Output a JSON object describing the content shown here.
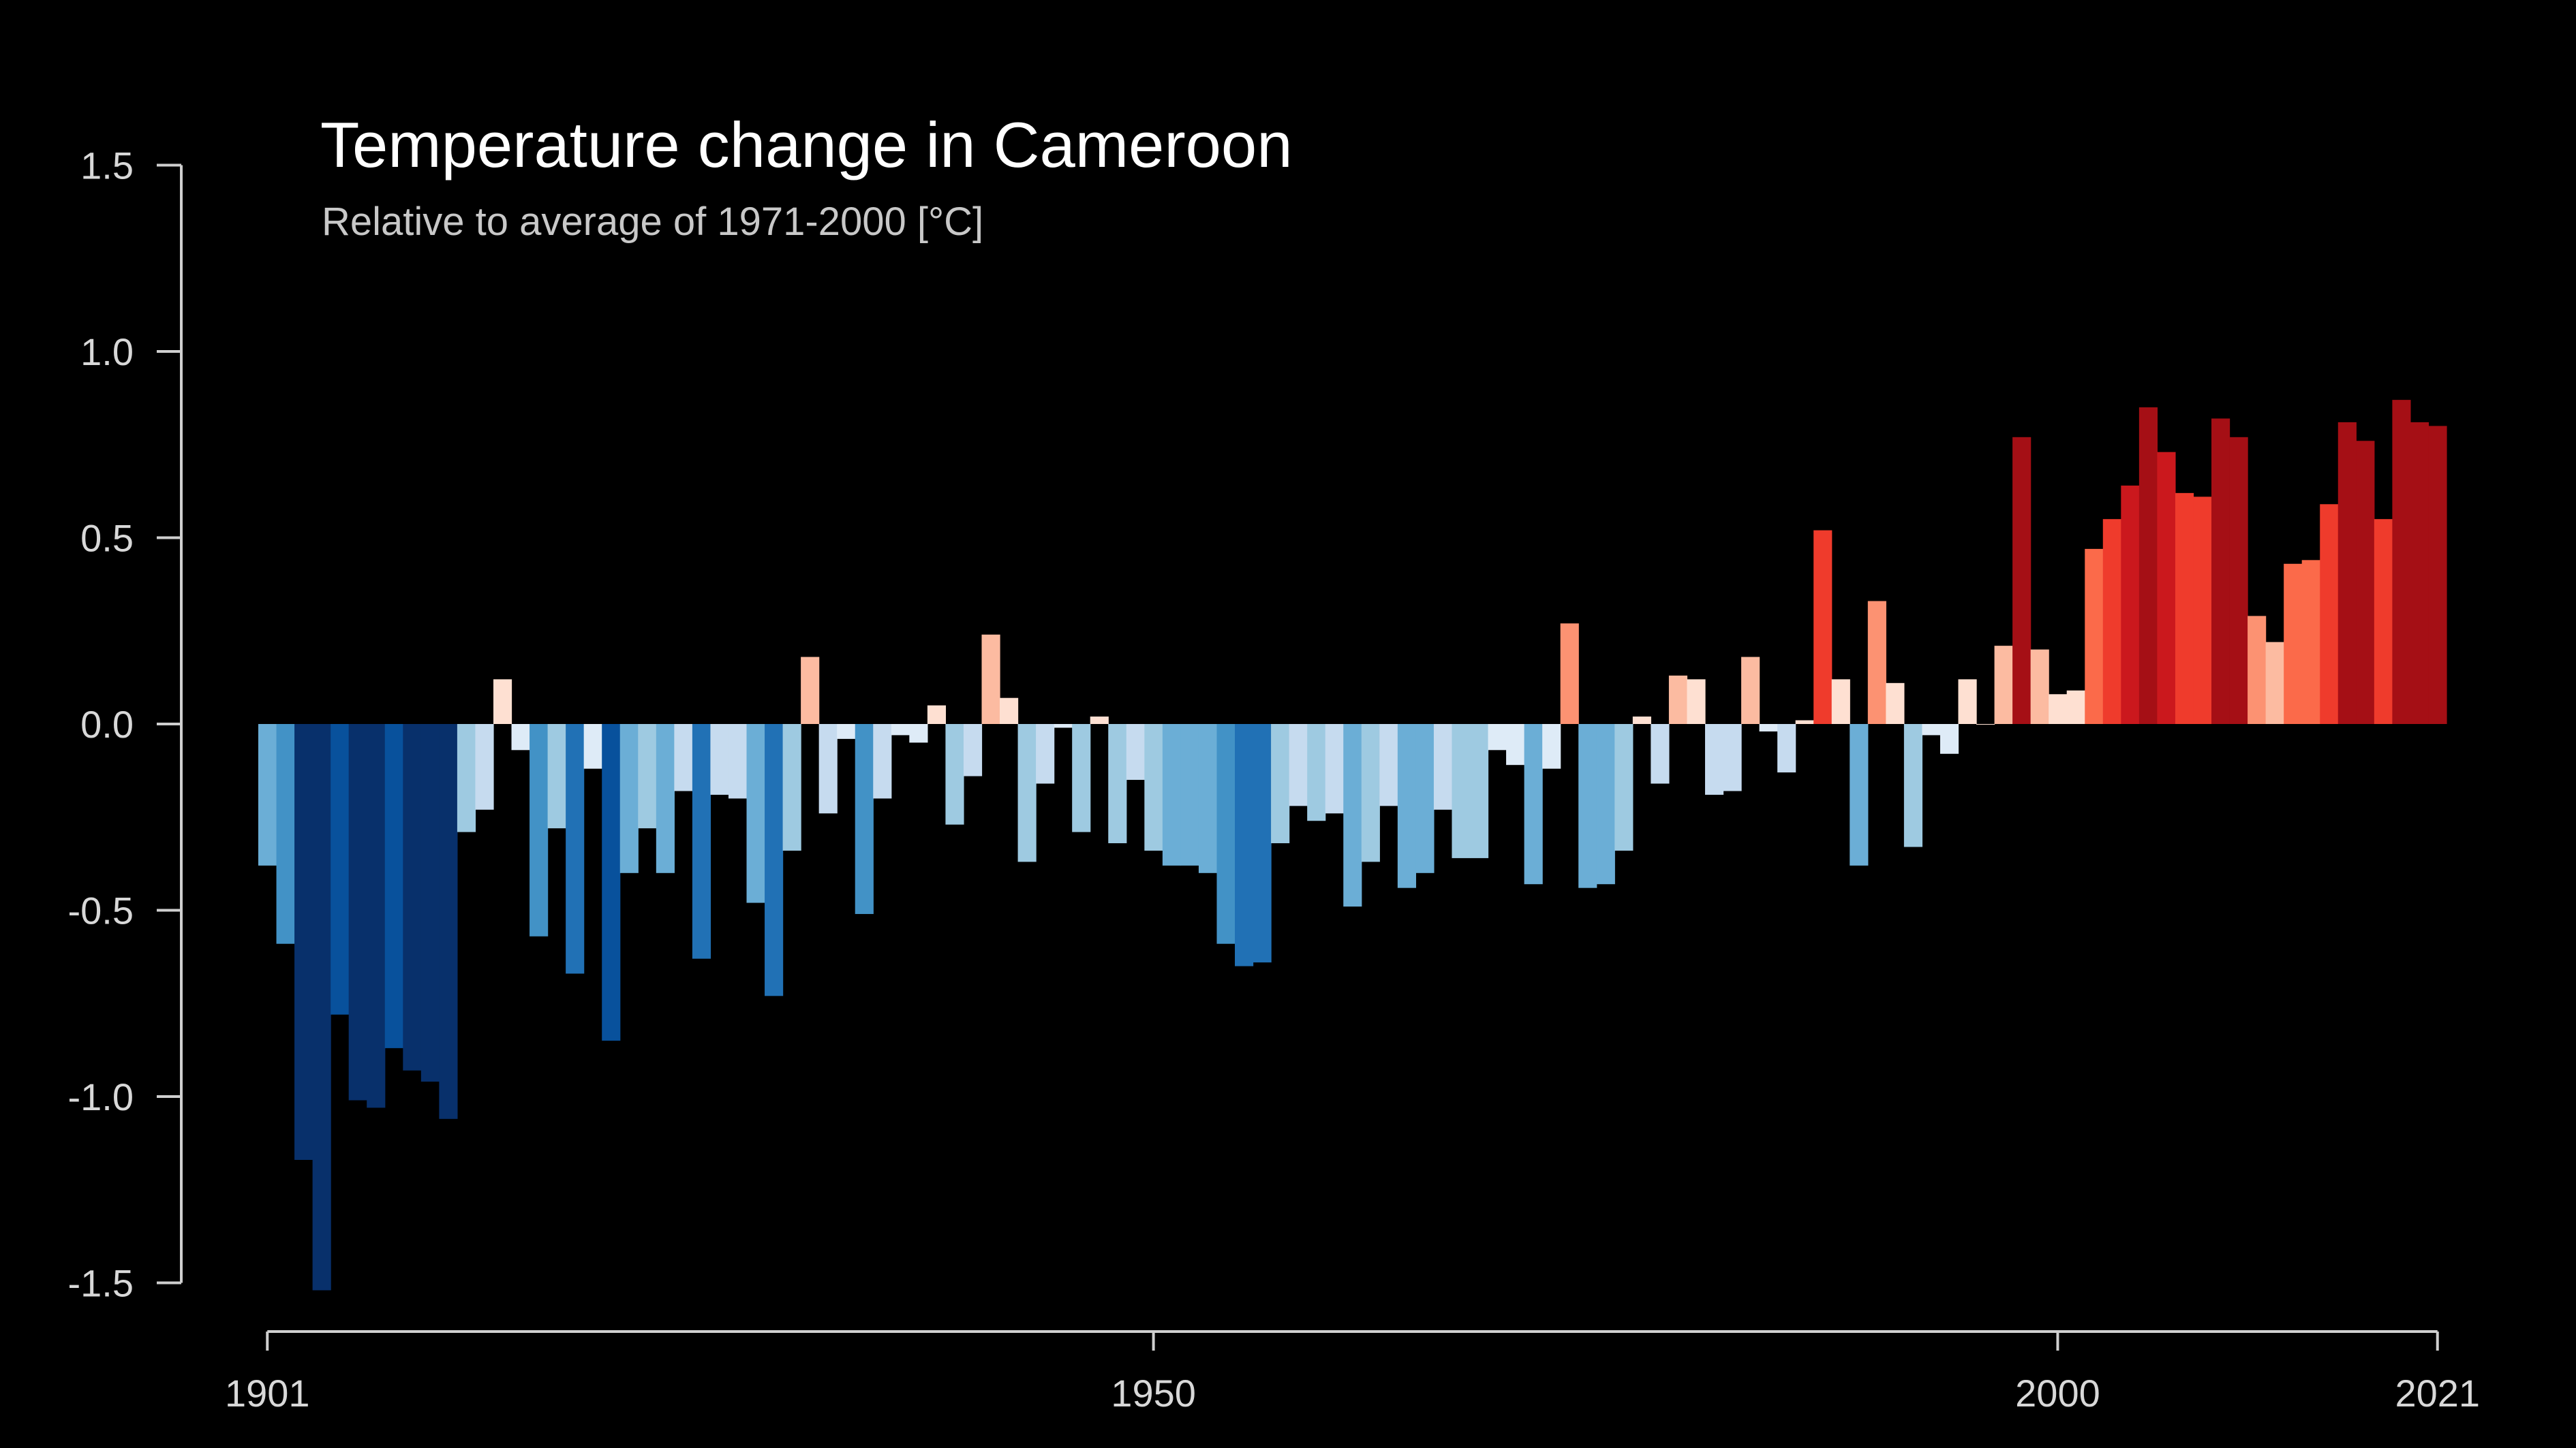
{
  "chart_data": {
    "type": "bar",
    "title": "Temperature change in Cameroon",
    "subtitle": "Relative to average of 1971-2000  [°C]",
    "xlabel": "",
    "ylabel": "",
    "ylim": [
      -1.5,
      1.5
    ],
    "xlim": [
      1901,
      2021
    ],
    "yticks": [
      -1.5,
      -1.0,
      -0.5,
      0.0,
      0.5,
      1.0,
      1.5
    ],
    "ytick_labels": [
      "-1.5",
      "-1.0",
      "-0.5",
      "0.0",
      "0.5",
      "1.0",
      "1.5"
    ],
    "xticks": [
      1901,
      1950,
      2000,
      2021
    ],
    "xtick_labels": [
      "1901",
      "1950",
      "2000",
      "2021"
    ],
    "grid": false,
    "legend": "none",
    "colormap": "blue-to-red diverging (stripes)",
    "background": "#000000",
    "x": [
      1901,
      1902,
      1903,
      1904,
      1905,
      1906,
      1907,
      1908,
      1909,
      1910,
      1911,
      1912,
      1913,
      1914,
      1915,
      1916,
      1917,
      1918,
      1919,
      1920,
      1921,
      1922,
      1923,
      1924,
      1925,
      1926,
      1927,
      1928,
      1929,
      1930,
      1931,
      1932,
      1933,
      1934,
      1935,
      1936,
      1937,
      1938,
      1939,
      1940,
      1941,
      1942,
      1943,
      1944,
      1945,
      1946,
      1947,
      1948,
      1949,
      1950,
      1951,
      1952,
      1953,
      1954,
      1955,
      1956,
      1957,
      1958,
      1959,
      1960,
      1961,
      1962,
      1963,
      1964,
      1965,
      1966,
      1967,
      1968,
      1969,
      1970,
      1971,
      1972,
      1973,
      1974,
      1975,
      1976,
      1977,
      1978,
      1979,
      1980,
      1981,
      1982,
      1983,
      1984,
      1985,
      1986,
      1987,
      1988,
      1989,
      1990,
      1991,
      1992,
      1993,
      1994,
      1995,
      1996,
      1997,
      1998,
      1999,
      2000,
      2001,
      2002,
      2003,
      2004,
      2005,
      2006,
      2007,
      2008,
      2009,
      2010,
      2011,
      2012,
      2013,
      2014,
      2015,
      2016,
      2017,
      2018,
      2019,
      2020,
      2021
    ],
    "values": [
      -0.38,
      -0.59,
      -1.17,
      -1.52,
      -0.78,
      -1.01,
      -1.03,
      -0.87,
      -0.93,
      -0.96,
      -1.06,
      -0.29,
      -0.23,
      0.12,
      -0.07,
      -0.57,
      -0.28,
      -0.67,
      -0.12,
      -0.85,
      -0.4,
      -0.28,
      -0.4,
      -0.18,
      -0.63,
      -0.19,
      -0.2,
      -0.48,
      -0.73,
      -0.34,
      0.18,
      -0.24,
      -0.04,
      -0.51,
      -0.2,
      -0.03,
      -0.05,
      0.05,
      -0.27,
      -0.14,
      0.24,
      0.07,
      -0.37,
      -0.16,
      -0.01,
      -0.29,
      0.02,
      -0.32,
      -0.15,
      -0.34,
      -0.38,
      -0.38,
      -0.4,
      -0.59,
      -0.65,
      -0.64,
      -0.32,
      -0.22,
      -0.26,
      -0.24,
      -0.49,
      -0.37,
      -0.22,
      -0.44,
      -0.4,
      -0.23,
      -0.36,
      -0.36,
      -0.07,
      -0.11,
      -0.43,
      -0.12,
      0.27,
      -0.44,
      -0.43,
      -0.34,
      0.02,
      -0.16,
      0.13,
      0.12,
      -0.19,
      -0.18,
      0.18,
      -0.02,
      -0.13,
      0.01,
      0.52,
      0.12,
      -0.38,
      0.33,
      0.11,
      -0.33,
      -0.03,
      -0.08,
      0.12,
      0.0,
      0.21,
      0.77,
      0.2,
      0.08,
      0.09,
      0.47,
      0.55,
      0.64,
      0.85,
      0.73,
      0.62,
      0.61,
      0.82,
      0.77,
      0.29,
      0.22,
      0.43,
      0.44,
      0.59,
      0.81,
      0.76,
      0.55,
      0.87,
      0.81,
      0.8
    ]
  }
}
